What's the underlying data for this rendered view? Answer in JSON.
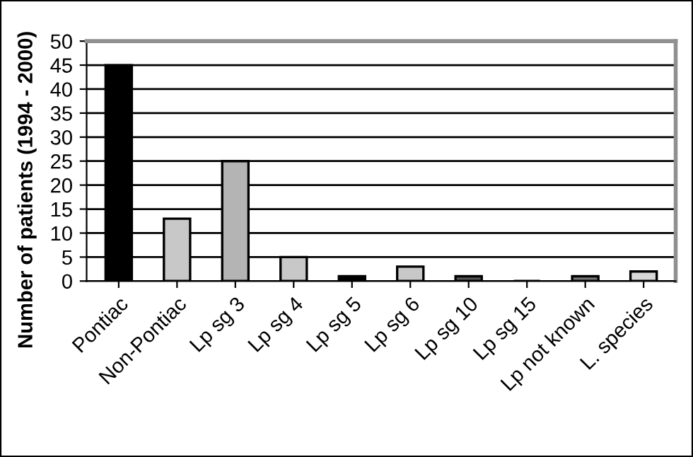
{
  "chart_data": {
    "type": "bar",
    "ylabel": "Number of patients (1994 - 2000)",
    "categories": [
      "Pontiac",
      "Non-Pontiac",
      "Lp sg 3",
      "Lp sg 4",
      "Lp sg 5",
      "Lp sg 6",
      "Lp sg 10",
      "Lp sg 15",
      "Lp not known",
      "L. species"
    ],
    "values": [
      45,
      13,
      25,
      5,
      1,
      3,
      1,
      0,
      1,
      2
    ],
    "colors": [
      "#000000",
      "#c8c8c8",
      "#b4b4b4",
      "#c8c8c8",
      "#000000",
      "#c8c8c8",
      "#555555",
      "#000000",
      "#777777",
      "#d8d8d8"
    ],
    "ylim": [
      0,
      50
    ],
    "yticks": [
      0,
      5,
      10,
      15,
      20,
      25,
      30,
      35,
      40,
      45,
      50
    ],
    "grid": "y"
  }
}
